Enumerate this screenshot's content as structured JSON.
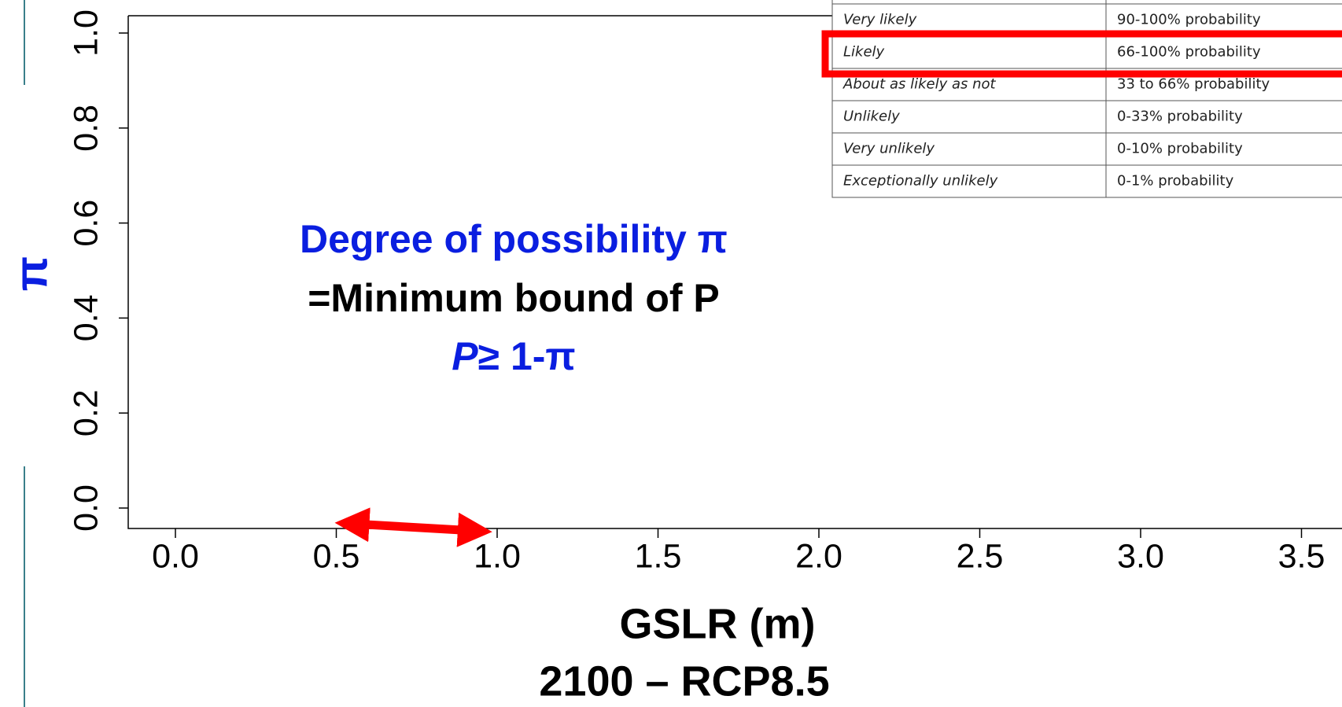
{
  "chart_data": {
    "type": "scatter",
    "xlim": [
      -0.2,
      3.9
    ],
    "ylim": [
      -0.04,
      1.04
    ],
    "xticks": [
      {
        "value": 0,
        "label": "0.0"
      },
      0.5,
      {
        "value": 1,
        "label": "1.0"
      },
      1.5,
      {
        "value": 2,
        "label": "2.0"
      },
      2.5,
      {
        "value": 3,
        "label": "3.0"
      },
      3.5
    ],
    "yticks": [
      {
        "value": 0,
        "label": "0.0"
      },
      0.2,
      0.4,
      0.6,
      0.8,
      {
        "value": 1,
        "label": "1.0"
      }
    ],
    "xlabel": [
      "GSLR (m)",
      "2100 – RCP8.5"
    ],
    "ylabel": "π",
    "annotations": [
      "Degree of possibility π",
      "=Minimum bound of P",
      [
        "P",
        "≥ 1-π"
      ]
    ],
    "arrow": [
      0.5,
      0.98
    ],
    "arrow_color": "#ff0000",
    "highlight_color": "#ff0000"
  },
  "table": {
    "rows": [
      [
        "Very likely",
        "90-100% probability"
      ],
      [
        "Likely",
        "66-100% probability"
      ],
      [
        "About as likely as not",
        "33 to 66% probability"
      ],
      [
        "Unlikely",
        "0-33% probability"
      ],
      [
        "Very unlikely",
        "0-10% probability"
      ],
      [
        "Exceptionally unlikely",
        "0-1% probability"
      ]
    ],
    "highlight_row": 1
  }
}
